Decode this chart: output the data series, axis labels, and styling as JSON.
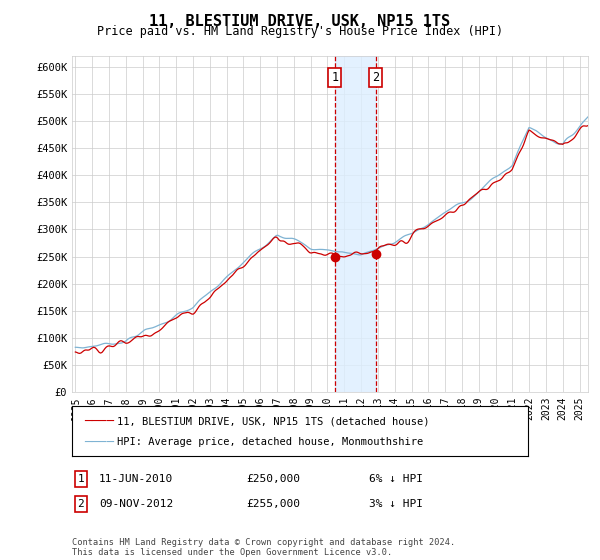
{
  "title": "11, BLESTIUM DRIVE, USK, NP15 1TS",
  "subtitle": "Price paid vs. HM Land Registry's House Price Index (HPI)",
  "ylabel_ticks": [
    "£0",
    "£50K",
    "£100K",
    "£150K",
    "£200K",
    "£250K",
    "£300K",
    "£350K",
    "£400K",
    "£450K",
    "£500K",
    "£550K",
    "£600K"
  ],
  "ytick_values": [
    0,
    50000,
    100000,
    150000,
    200000,
    250000,
    300000,
    350000,
    400000,
    450000,
    500000,
    550000,
    600000
  ],
  "ylim": [
    0,
    620000
  ],
  "xlim_start": 1994.8,
  "xlim_end": 2025.5,
  "legend_line1": "11, BLESTIUM DRIVE, USK, NP15 1TS (detached house)",
  "legend_line2": "HPI: Average price, detached house, Monmouthshire",
  "annotation1_label": "1",
  "annotation1_date": "11-JUN-2010",
  "annotation1_price": "£250,000",
  "annotation1_hpi": "6% ↓ HPI",
  "annotation2_label": "2",
  "annotation2_date": "09-NOV-2012",
  "annotation2_price": "£255,000",
  "annotation2_hpi": "3% ↓ HPI",
  "footnote": "Contains HM Land Registry data © Crown copyright and database right 2024.\nThis data is licensed under the Open Government Licence v3.0.",
  "sale1_x": 2010.44,
  "sale1_y": 250000,
  "sale2_x": 2012.86,
  "sale2_y": 255000,
  "shading_start": 2010.44,
  "shading_end": 2012.86,
  "line_color_red": "#cc0000",
  "line_color_blue": "#7FB3D3",
  "shading_color": "#ddeeff",
  "grid_color": "#cccccc",
  "background_color": "#ffffff",
  "years": [
    1995,
    1996,
    1997,
    1998,
    1999,
    2000,
    2001,
    2002,
    2003,
    2004,
    2005,
    2006,
    2007,
    2008,
    2009,
    2010,
    2011,
    2012,
    2013,
    2014,
    2015,
    2016,
    2017,
    2018,
    2019,
    2020,
    2021,
    2022,
    2023,
    2024,
    2025
  ]
}
